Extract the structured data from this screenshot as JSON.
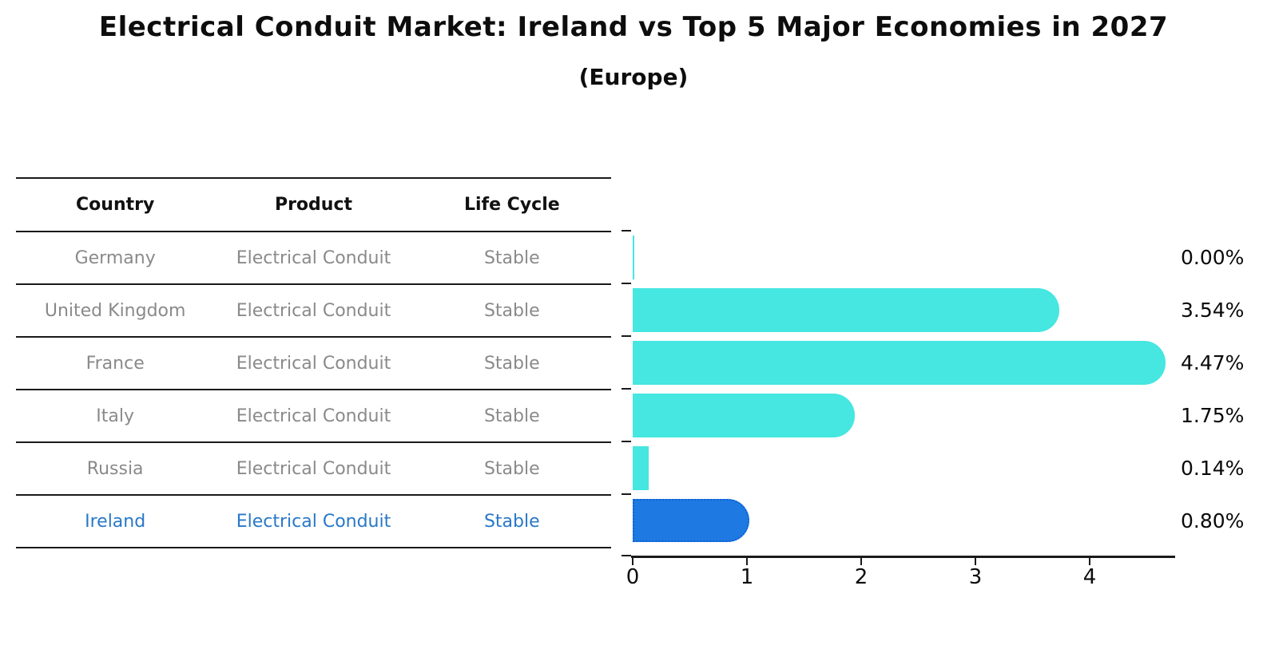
{
  "title": "Electrical Conduit Market: Ireland vs Top 5 Major Economies in 2027",
  "subtitle": "(Europe)",
  "table": {
    "headers": [
      "Country",
      "Product",
      "Life Cycle"
    ],
    "rows": [
      {
        "country": "Germany",
        "product": "Electrical Conduit",
        "life_cycle": "Stable",
        "highlight": false
      },
      {
        "country": "United Kingdom",
        "product": "Electrical Conduit",
        "life_cycle": "Stable",
        "highlight": false
      },
      {
        "country": "France",
        "product": "Electrical Conduit",
        "life_cycle": "Stable",
        "highlight": false
      },
      {
        "country": "Italy",
        "product": "Electrical Conduit",
        "life_cycle": "Stable",
        "highlight": false
      },
      {
        "country": "Russia",
        "product": "Electrical Conduit",
        "life_cycle": "Stable",
        "highlight": false
      },
      {
        "country": "Ireland",
        "product": "Electrical Conduit",
        "life_cycle": "Stable",
        "highlight": true
      }
    ]
  },
  "chart_data": {
    "type": "bar",
    "orientation": "horizontal",
    "title": "Electrical Conduit Market: Ireland vs Top 5 Major Economies in 2027",
    "subtitle": "(Europe)",
    "categories": [
      "Germany",
      "United Kingdom",
      "France",
      "Italy",
      "Russia",
      "Ireland"
    ],
    "values": [
      0.0,
      3.54,
      4.47,
      1.75,
      0.14,
      0.8
    ],
    "value_labels": [
      "0.00%",
      "3.54%",
      "4.47%",
      "1.75%",
      "0.14%",
      "0.80%"
    ],
    "x_ticks": [
      "0",
      "1",
      "2",
      "3",
      "4"
    ],
    "xlim": [
      0,
      4.7
    ],
    "xlabel": "",
    "ylabel": "",
    "grid": false,
    "legend": false,
    "highlight_index": 5,
    "bar_color": "#46e6e1",
    "highlight_bar_color": "#1e7ae2"
  },
  "colors": {
    "bar": "#46e6e1",
    "highlight_bar": "#1e7ae2",
    "highlight_bar_border": "#1261d2",
    "highlight_text": "#2878c8",
    "table_text": "#8a8a8a",
    "heading_text": "#111111",
    "axis": "#1a1a1a"
  }
}
